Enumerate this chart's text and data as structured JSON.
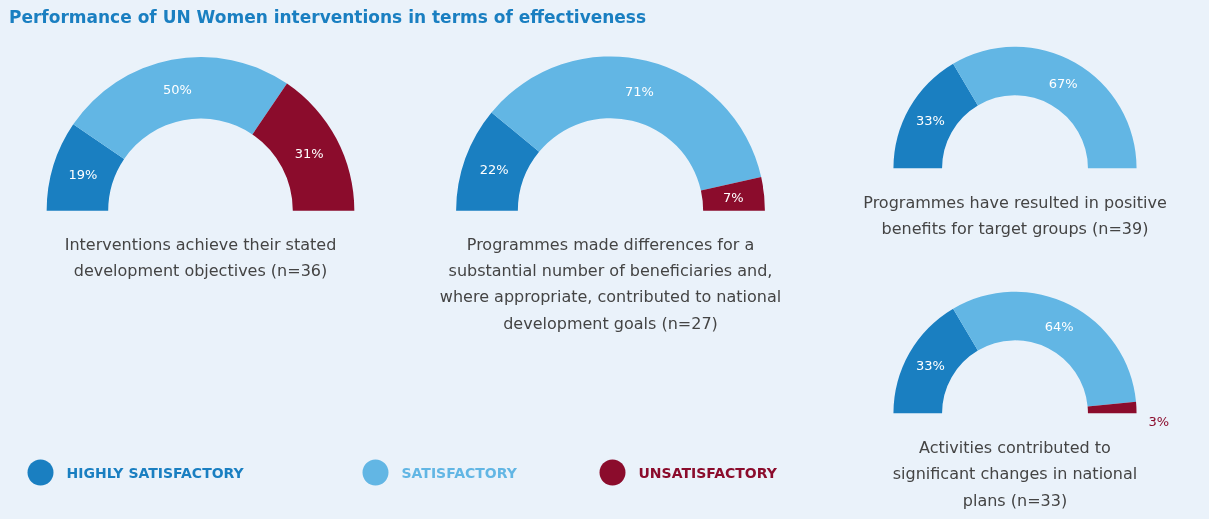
{
  "chart_data": [
    {
      "type": "donut",
      "title": "Performance of UN Women interventions in terms of effectiveness",
      "xlabel": "Interventions achieve their stated development objectives (n=36)",
      "categories": [
        "HIGHLY SATISFACTORY",
        "SATISFACTORY",
        "UNSATISFACTORY"
      ],
      "values": [
        19,
        50,
        31
      ],
      "value_labels": [
        "19%",
        "50%",
        "31%"
      ],
      "colors": [
        "#1a7fc1",
        "#62b6e4",
        "#8b0c2c"
      ],
      "legend": "bottom"
    },
    {
      "type": "donut",
      "xlabel": "Programmes made differences for a substantial number of beneficiaries and, where appropriate, contributed to national development goals (n=27)",
      "values": [
        22,
        71,
        7
      ],
      "value_labels": [
        "22%",
        "71%",
        "7%"
      ],
      "colors": [
        "#1a7fc1",
        "#62b6e4",
        "#8b0c2c"
      ]
    },
    {
      "type": "donut",
      "xlabel": "Programmes have resulted in positive benefits for target groups (n=39)",
      "values": [
        33,
        67
      ],
      "value_labels": [
        "33%",
        "67%"
      ],
      "colors": [
        "#1a7fc1",
        "#62b6e4"
      ]
    },
    {
      "type": "donut",
      "xlabel": "Activities contributed to significant changes in national plans (n=33)",
      "values": [
        33,
        64,
        3
      ],
      "value_labels": [
        "33%",
        "64%",
        "3%"
      ],
      "colors": [
        "#1a7fc1",
        "#62b6e4",
        "#8b0c2c"
      ]
    }
  ]
}
